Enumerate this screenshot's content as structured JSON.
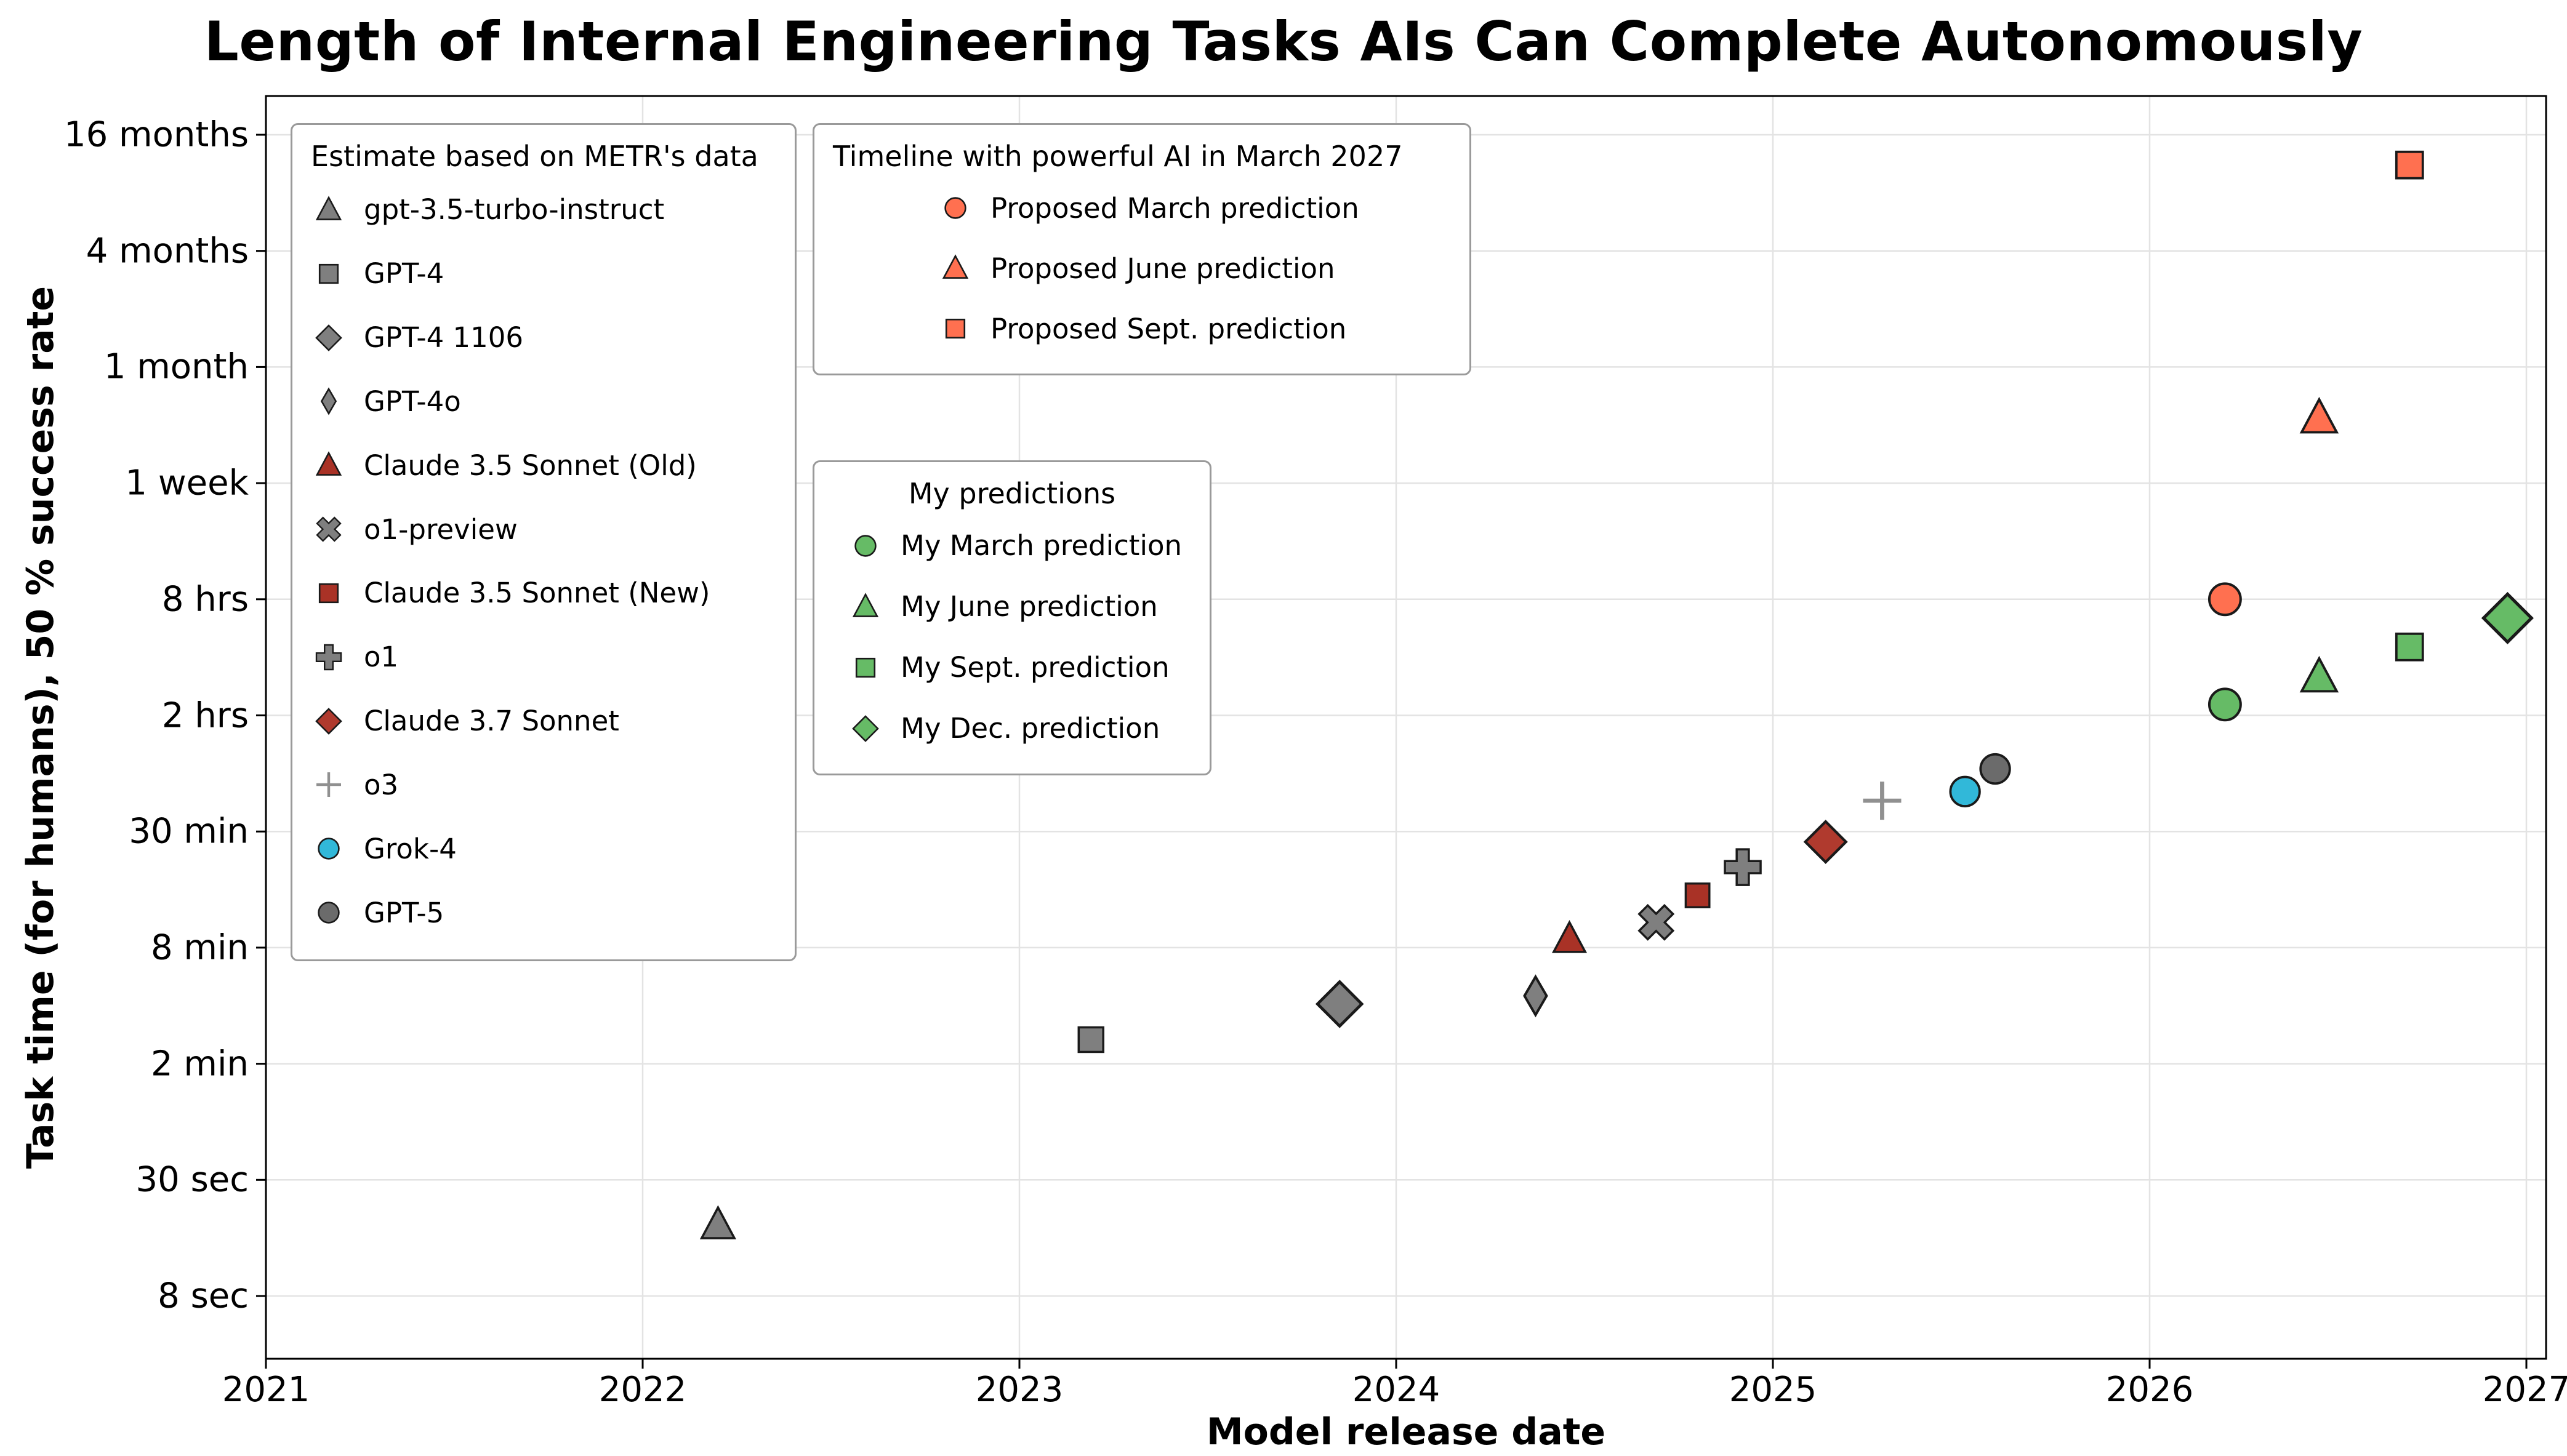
{
  "chart_data": {
    "type": "scatter",
    "title": "Length of Internal Engineering Tasks AIs Can Complete Autonomously",
    "xlabel": "Model release date",
    "ylabel": "Task time (for humans), 50 % success rate",
    "x_ticks": [
      2021,
      2022,
      2023,
      2024,
      2025,
      2026,
      2027
    ],
    "xlim": [
      2021,
      2027.05
    ],
    "y_scale": "log",
    "grid": true,
    "y_ticks": [
      {
        "label": "8 sec",
        "seconds": 8
      },
      {
        "label": "30 sec",
        "seconds": 30
      },
      {
        "label": "2 min",
        "seconds": 120
      },
      {
        "label": "8 min",
        "seconds": 480
      },
      {
        "label": "30 min",
        "seconds": 1800
      },
      {
        "label": "2 hrs",
        "seconds": 7200
      },
      {
        "label": "8 hrs",
        "seconds": 28800
      },
      {
        "label": "1 week",
        "seconds": 604800
      },
      {
        "label": "1 month",
        "seconds": 2592000
      },
      {
        "label": "4 months",
        "seconds": 10368000
      },
      {
        "label": "16 months",
        "seconds": 41472000
      }
    ],
    "colors": {
      "metr_gray": "#7f7f7f",
      "claude_red": "#a93226",
      "claude_37_red": "#b03a2e",
      "o3_gray": "#909090",
      "grok_cyan": "#31b8d9",
      "gpt5_gray": "#6b6b6b",
      "proposed_orange": "#ff7050",
      "mine_green": "#66bb66"
    },
    "points": [
      {
        "name": "gpt-3.5-turbo-instruct",
        "marker": "triangle",
        "color": "#7f7f7f",
        "x": 2022.2,
        "y_seconds": 18,
        "y_approx": "~18 sec",
        "size": 56
      },
      {
        "name": "GPT-4",
        "marker": "square",
        "color": "#7f7f7f",
        "x": 2023.19,
        "y_seconds": 160,
        "y_approx": "~2.7 min",
        "size": 54
      },
      {
        "name": "GPT-4 1106",
        "marker": "diamond",
        "color": "#7f7f7f",
        "x": 2023.85,
        "y_seconds": 245,
        "y_approx": "~4 min",
        "size": 72
      },
      {
        "name": "GPT-4o",
        "marker": "thin-diamond",
        "color": "#7f7f7f",
        "x": 2024.37,
        "y_seconds": 270,
        "y_approx": "~4.5 min",
        "size": 62
      },
      {
        "name": "Claude 3.5 Sonnet (Old)",
        "marker": "triangle",
        "color": "#a93226",
        "x": 2024.46,
        "y_seconds": 530,
        "y_approx": "~9 min",
        "size": 54
      },
      {
        "name": "o1-preview",
        "marker": "x-bold",
        "color": "#7f7f7f",
        "x": 2024.69,
        "y_seconds": 640,
        "y_approx": "~11 min",
        "size": 58
      },
      {
        "name": "Claude 3.5 Sonnet (New)",
        "marker": "square",
        "color": "#a93226",
        "x": 2024.8,
        "y_seconds": 870,
        "y_approx": "~15 min",
        "size": 52
      },
      {
        "name": "o1",
        "marker": "plus-bold",
        "color": "#7f7f7f",
        "x": 2024.92,
        "y_seconds": 1200,
        "y_approx": "~20 min",
        "size": 58
      },
      {
        "name": "Claude 3.7 Sonnet",
        "marker": "diamond",
        "color": "#b03a2e",
        "x": 2025.14,
        "y_seconds": 1600,
        "y_approx": "~27 min",
        "size": 66
      },
      {
        "name": "o3",
        "marker": "plus-thin",
        "color": "#909090",
        "x": 2025.29,
        "y_seconds": 2600,
        "y_approx": "~43 min",
        "size": 62
      },
      {
        "name": "Grok-4",
        "marker": "circle",
        "color": "#31b8d9",
        "x": 2025.51,
        "y_seconds": 2900,
        "y_approx": "~48 min",
        "size": 58
      },
      {
        "name": "GPT-5",
        "marker": "circle",
        "color": "#6b6b6b",
        "x": 2025.59,
        "y_seconds": 3800,
        "y_approx": "~1.1 hrs",
        "size": 58
      },
      {
        "name": "My March prediction",
        "marker": "circle",
        "color": "#66bb66",
        "x": 2026.2,
        "y_seconds": 8200,
        "y_approx": "~2.3 hrs",
        "size": 62
      },
      {
        "name": "Proposed March prediction",
        "marker": "circle",
        "color": "#ff7050",
        "x": 2026.2,
        "y_seconds": 28800,
        "y_approx": "8 hrs",
        "size": 62
      },
      {
        "name": "My June prediction",
        "marker": "triangle",
        "color": "#66bb66",
        "x": 2026.45,
        "y_seconds": 11400,
        "y_approx": "~3.2 hrs",
        "size": 60
      },
      {
        "name": "Proposed June prediction",
        "marker": "triangle",
        "color": "#ff7050",
        "x": 2026.45,
        "y_seconds": 1370000,
        "y_approx": "~2.3 weeks",
        "size": 60
      },
      {
        "name": "My Sept. prediction",
        "marker": "square",
        "color": "#66bb66",
        "x": 2026.69,
        "y_seconds": 16300,
        "y_approx": "~4.5 hrs",
        "size": 58
      },
      {
        "name": "Proposed Sept. prediction",
        "marker": "square",
        "color": "#ff7050",
        "x": 2026.69,
        "y_seconds": 28900000,
        "y_approx": "~11 months",
        "size": 58
      },
      {
        "name": "My Dec. prediction",
        "marker": "diamond",
        "color": "#66bb66",
        "x": 2026.95,
        "y_seconds": 23000,
        "y_approx": "~6.4 hrs",
        "size": 78
      }
    ],
    "legends": [
      {
        "title": "Estimate based on METR's data",
        "entries": [
          {
            "label": "gpt-3.5-turbo-instruct",
            "marker": "triangle",
            "color": "#7f7f7f"
          },
          {
            "label": "GPT-4",
            "marker": "square",
            "color": "#7f7f7f"
          },
          {
            "label": "GPT-4 1106",
            "marker": "diamond",
            "color": "#7f7f7f"
          },
          {
            "label": "GPT-4o",
            "marker": "thin-diamond",
            "color": "#7f7f7f"
          },
          {
            "label": "Claude 3.5 Sonnet (Old)",
            "marker": "triangle",
            "color": "#a93226"
          },
          {
            "label": "o1-preview",
            "marker": "x-bold",
            "color": "#7f7f7f"
          },
          {
            "label": "Claude 3.5 Sonnet (New)",
            "marker": "square",
            "color": "#a93226"
          },
          {
            "label": "o1",
            "marker": "plus-bold",
            "color": "#7f7f7f"
          },
          {
            "label": "Claude 3.7 Sonnet",
            "marker": "diamond",
            "color": "#b03a2e"
          },
          {
            "label": "o3",
            "marker": "plus-thin",
            "color": "#909090"
          },
          {
            "label": "Grok-4",
            "marker": "circle",
            "color": "#31b8d9"
          },
          {
            "label": "GPT-5",
            "marker": "circle",
            "color": "#6b6b6b"
          }
        ]
      },
      {
        "title": "Timeline with powerful AI in March 2027",
        "entries": [
          {
            "label": "Proposed March prediction",
            "marker": "circle",
            "color": "#ff7050"
          },
          {
            "label": "Proposed June prediction",
            "marker": "triangle",
            "color": "#ff7050"
          },
          {
            "label": "Proposed Sept. prediction",
            "marker": "square",
            "color": "#ff7050"
          }
        ]
      },
      {
        "title": "My predictions",
        "entries": [
          {
            "label": "My March prediction",
            "marker": "circle",
            "color": "#66bb66"
          },
          {
            "label": "My June prediction",
            "marker": "triangle",
            "color": "#66bb66"
          },
          {
            "label": "My Sept. prediction",
            "marker": "square",
            "color": "#66bb66"
          },
          {
            "label": "My Dec. prediction",
            "marker": "diamond",
            "color": "#66bb66"
          }
        ]
      }
    ]
  }
}
